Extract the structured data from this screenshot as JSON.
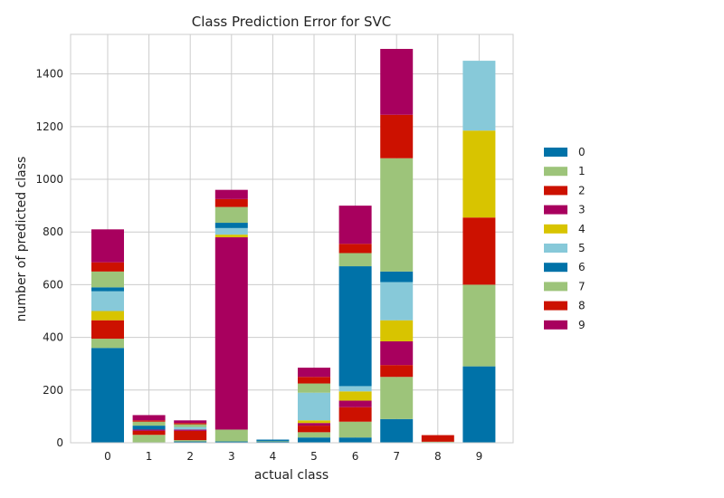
{
  "chart_data": {
    "type": "bar",
    "stacked": true,
    "title": "Class Prediction Error for SVC",
    "xlabel": "actual class",
    "ylabel": "number of predicted class",
    "categories": [
      "0",
      "1",
      "2",
      "3",
      "4",
      "5",
      "6",
      "7",
      "8",
      "9"
    ],
    "ylim": [
      0,
      1550
    ],
    "yticks": [
      0,
      200,
      400,
      600,
      800,
      1000,
      1200,
      1400
    ],
    "grid": true,
    "legend_position": "right",
    "series": [
      {
        "name": "0",
        "color": "#0072a8",
        "values": [
          360,
          0,
          5,
          5,
          5,
          20,
          20,
          90,
          2,
          290
        ]
      },
      {
        "name": "1",
        "color": "#9dc47a",
        "values": [
          35,
          30,
          5,
          45,
          2,
          20,
          60,
          160,
          2,
          310
        ]
      },
      {
        "name": "2",
        "color": "#cc1100",
        "values": [
          70,
          15,
          35,
          0,
          0,
          25,
          55,
          45,
          25,
          255
        ]
      },
      {
        "name": "3",
        "color": "#a8005e",
        "values": [
          0,
          5,
          5,
          730,
          0,
          10,
          25,
          90,
          0,
          0
        ]
      },
      {
        "name": "4",
        "color": "#d8c400",
        "values": [
          35,
          0,
          0,
          10,
          0,
          10,
          35,
          80,
          0,
          330
        ]
      },
      {
        "name": "5",
        "color": "#87c9d9",
        "values": [
          75,
          0,
          10,
          25,
          0,
          105,
          20,
          145,
          0,
          265
        ]
      },
      {
        "name": "6",
        "color": "#0072a8",
        "values": [
          15,
          15,
          0,
          20,
          5,
          0,
          455,
          40,
          0,
          0
        ]
      },
      {
        "name": "7",
        "color": "#9dc47a",
        "values": [
          60,
          15,
          10,
          60,
          0,
          35,
          50,
          430,
          0,
          0
        ]
      },
      {
        "name": "8",
        "color": "#cc1100",
        "values": [
          35,
          5,
          5,
          30,
          0,
          25,
          35,
          165,
          0,
          0
        ]
      },
      {
        "name": "9",
        "color": "#a8005e",
        "values": [
          125,
          20,
          10,
          35,
          0,
          35,
          145,
          250,
          0,
          0
        ]
      }
    ]
  }
}
